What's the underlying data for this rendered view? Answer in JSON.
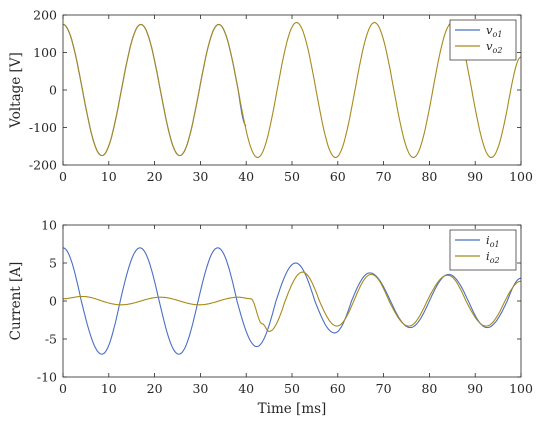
{
  "colors": {
    "o1": "#4a6fc4",
    "o2": "#a88a1c"
  },
  "chart_data": [
    {
      "type": "line",
      "ylabel": "Voltage [V]",
      "xlabel": "",
      "xlim": [
        0,
        100
      ],
      "ylim": [
        -200,
        200
      ],
      "xticks": [
        "0",
        "10",
        "20",
        "30",
        "40",
        "50",
        "60",
        "70",
        "80",
        "90",
        "100"
      ],
      "yticks": [
        "-200",
        "-100",
        "0",
        "100",
        "200"
      ],
      "legend_position": "top-right",
      "series": [
        {
          "name": "v",
          "sub": "o1",
          "color_key": "o1",
          "x_end": 40,
          "x": [
            0,
            4.25,
            8.5,
            12.75,
            17,
            21.25,
            25.5,
            29.75,
            34,
            38.25,
            40
          ],
          "values": [
            175,
            0,
            -175,
            0,
            175,
            0,
            -175,
            0,
            175,
            0,
            -95
          ]
        },
        {
          "name": "v",
          "sub": "o2",
          "color_key": "o2",
          "x": [
            0,
            4.25,
            8.5,
            12.75,
            17,
            21.25,
            25.5,
            29.75,
            34,
            38.25,
            42.5,
            46.75,
            51,
            55.25,
            59.5,
            63.75,
            68,
            72.25,
            76.5,
            80.75,
            85,
            89.25,
            93.5,
            97.75,
            100
          ],
          "values": [
            175,
            0,
            -175,
            0,
            175,
            0,
            -175,
            0,
            175,
            0,
            -180,
            0,
            180,
            0,
            -180,
            0,
            180,
            0,
            -180,
            0,
            180,
            0,
            -180,
            0,
            88
          ]
        }
      ]
    },
    {
      "type": "line",
      "ylabel": "Current [A]",
      "xlabel": "Time [ms]",
      "xlim": [
        0,
        100
      ],
      "ylim": [
        -10,
        10
      ],
      "xticks": [
        "0",
        "10",
        "20",
        "30",
        "40",
        "50",
        "60",
        "70",
        "80",
        "90",
        "100"
      ],
      "yticks": [
        "-10",
        "-5",
        "0",
        "5",
        "10"
      ],
      "legend_position": "top-right",
      "series": [
        {
          "name": "i",
          "sub": "o1",
          "color_key": "o1",
          "x": [
            0,
            4,
            8.5,
            12.5,
            16.8,
            21,
            25.3,
            29.5,
            33.8,
            38,
            42.3,
            46.5,
            50.8,
            55,
            59.3,
            63,
            67,
            71.5,
            75.8,
            80,
            84.2,
            88.5,
            92.6,
            97,
            100
          ],
          "values": [
            7,
            0,
            -7,
            0,
            7,
            0,
            -7,
            0,
            7,
            0,
            -6,
            0,
            5,
            0,
            -4.2,
            0,
            3.7,
            0,
            -3.5,
            0,
            3.5,
            0,
            -3.5,
            0,
            3
          ]
        },
        {
          "name": "i",
          "sub": "o2",
          "color_key": "o2",
          "x": [
            0,
            4.2,
            8.5,
            12.7,
            17,
            21.3,
            25.5,
            29.8,
            34,
            38.3,
            41,
            43.5,
            45,
            48.5,
            52.3,
            56,
            59.8,
            63.5,
            67.3,
            71.2,
            75.5,
            79.5,
            84,
            88,
            92.4,
            96.5,
            100
          ],
          "values": [
            0.3,
            0.6,
            0,
            -0.5,
            0,
            0.5,
            0,
            -0.5,
            0,
            0.5,
            0.3,
            -3,
            -4,
            0,
            3.8,
            0,
            -3.3,
            0,
            3.5,
            0,
            -3.3,
            0,
            3.4,
            0,
            -3.3,
            0,
            2.6
          ]
        }
      ]
    }
  ]
}
